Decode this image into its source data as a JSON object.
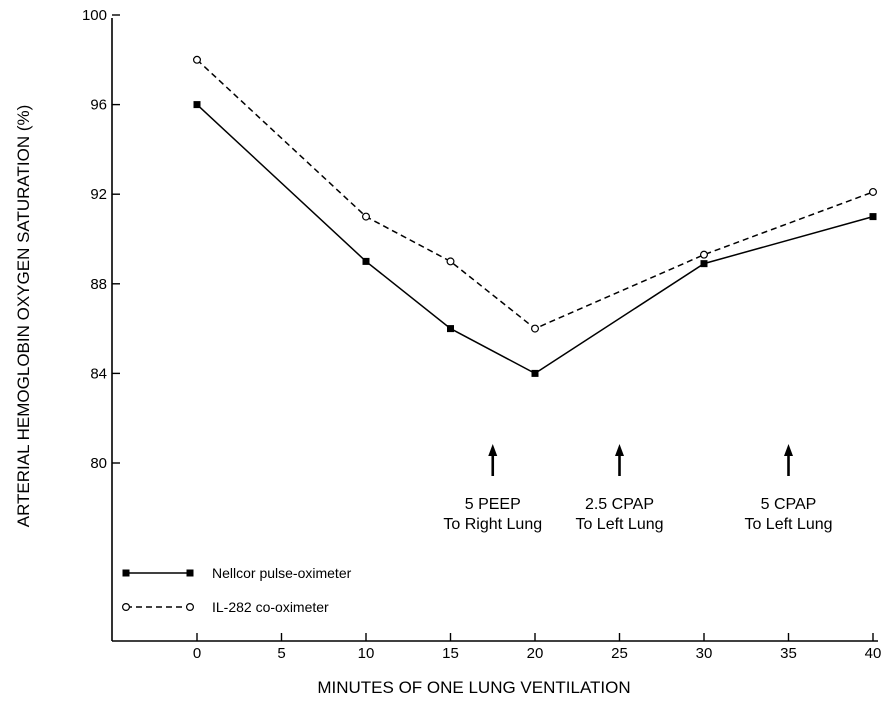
{
  "chart_data": {
    "type": "line",
    "xlabel": "MINUTES OF ONE LUNG VENTILATION",
    "ylabel": "ARTERIAL HEMOGLOBIN OXYGEN SATURATION (%)",
    "x_ticks": [
      0,
      5,
      10,
      15,
      20,
      25,
      30,
      35,
      40
    ],
    "y_ticks": [
      80,
      84,
      88,
      92,
      96,
      100
    ],
    "xlim": [
      -5,
      40
    ],
    "ylim": [
      74,
      100
    ],
    "grid": false,
    "legend_position": "bottom-left",
    "series": [
      {
        "name": "Nellcor pulse-oximeter",
        "line_style": "solid",
        "marker": "filled-square",
        "x": [
          0,
          10,
          15,
          20,
          30,
          40
        ],
        "y": [
          96,
          89,
          86,
          84,
          88.9,
          91
        ]
      },
      {
        "name": "IL-282 co-oximeter",
        "line_style": "dashed",
        "marker": "open-circle",
        "x": [
          0,
          10,
          15,
          20,
          30,
          40
        ],
        "y": [
          98,
          91,
          89,
          86,
          89.3,
          92.1
        ]
      }
    ],
    "annotations": [
      {
        "x": 17.5,
        "line1": "5 PEEP",
        "line2": "To Right Lung"
      },
      {
        "x": 25,
        "line1": "2.5 CPAP",
        "line2": "To Left Lung"
      },
      {
        "x": 35,
        "line1": "5 CPAP",
        "line2": "To Left Lung"
      }
    ]
  }
}
